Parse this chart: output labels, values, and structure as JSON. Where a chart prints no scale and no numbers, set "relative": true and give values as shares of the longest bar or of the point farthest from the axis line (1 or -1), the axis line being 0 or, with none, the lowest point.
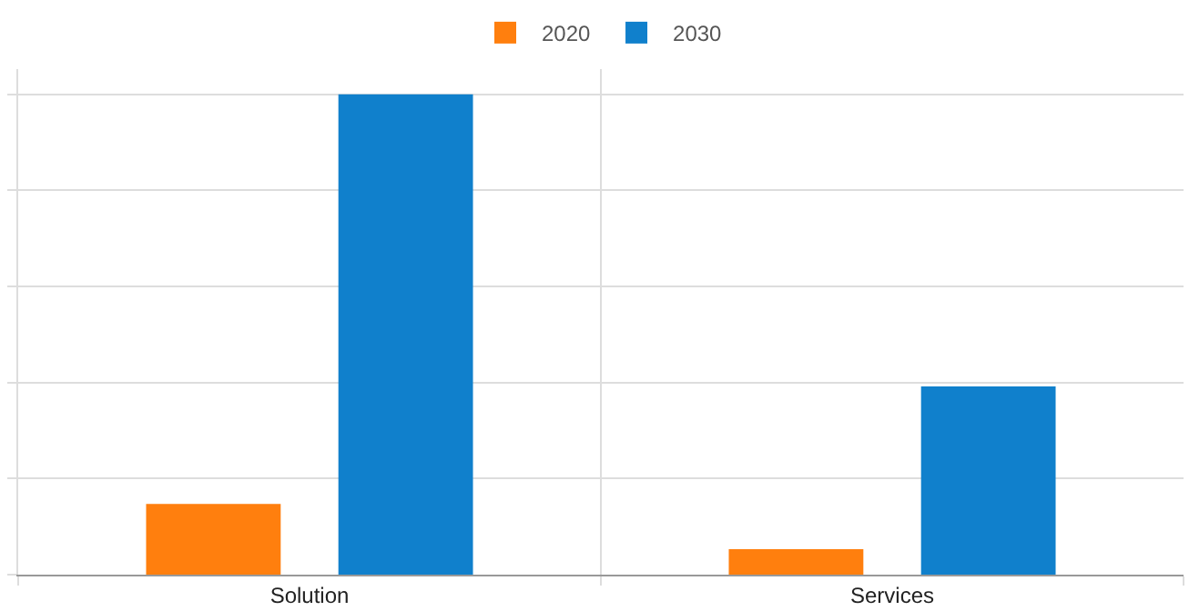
{
  "chart_data": {
    "type": "bar",
    "relative": true,
    "categories": [
      "Solution",
      "Services"
    ],
    "series": [
      {
        "name": "2020",
        "color": "#ff7f0e",
        "values": [
          0.147,
          0.053
        ]
      },
      {
        "name": "2030",
        "color": "#1080cc",
        "values": [
          1,
          0.392
        ]
      }
    ],
    "grid": true,
    "legend": "top"
  }
}
